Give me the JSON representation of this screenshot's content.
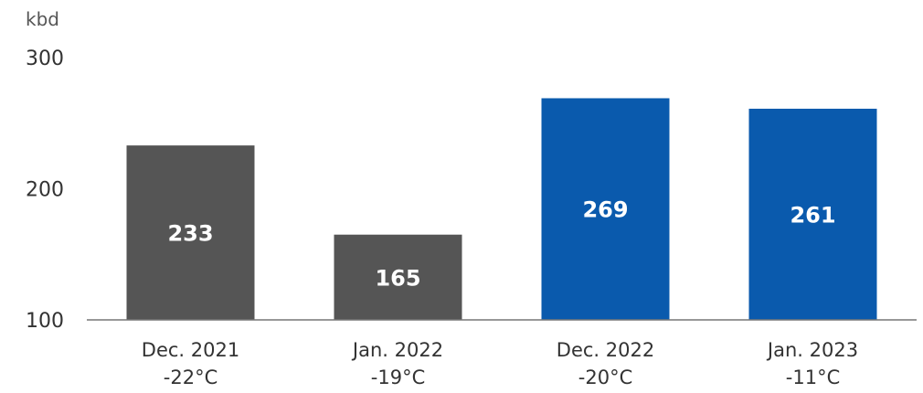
{
  "chart_data": {
    "type": "bar",
    "unit_label": "kbd",
    "categories": [
      [
        "Dec. 2021",
        "-22°C"
      ],
      [
        "Jan. 2022",
        "-19°C"
      ],
      [
        "Dec. 2022",
        "-20°C"
      ],
      [
        "Jan. 2023",
        "-11°C"
      ]
    ],
    "values": [
      233,
      165,
      269,
      261
    ],
    "data_labels": [
      "233",
      "165",
      "269",
      "261"
    ],
    "bar_colors": [
      "#555555",
      "#555555",
      "#0a5aad",
      "#0a5aad"
    ],
    "yticks": [
      100,
      200,
      300
    ],
    "ylim": [
      100,
      300
    ],
    "grid": false,
    "legend": "none"
  }
}
